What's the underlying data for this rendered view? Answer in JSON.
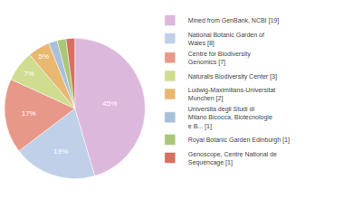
{
  "chart_data": {
    "type": "pie",
    "categories": [
      "Mined from GenBank, NCBI [19]",
      "National Botanic Garden of\nWales [8]",
      "Centre for Biodiversity\nGenomics [7]",
      "Naturalis Biodiversity Center [3]",
      "Ludwig-Maximilians-Universitat\nMunchen [2]",
      "Universita degli Studi di\nMilano Bicocca, Biotecnologie\ne B... [1]",
      "Royal Botanic Garden Edinburgh [1]",
      "Genoscope, Centre National de\nSequencage [1]"
    ],
    "values": [
      45,
      19,
      17,
      7,
      5,
      2,
      2,
      2
    ],
    "value_labels": [
      "45%",
      "19%",
      "17%",
      "7%",
      "5%",
      null,
      null,
      null
    ],
    "colors": [
      "#ddb8dd",
      "#c0d0e8",
      "#e89888",
      "#d0dc90",
      "#e8b870",
      "#a8c0d8",
      "#a8c878",
      "#d87060"
    ],
    "data_labels": true,
    "legend": "right"
  }
}
